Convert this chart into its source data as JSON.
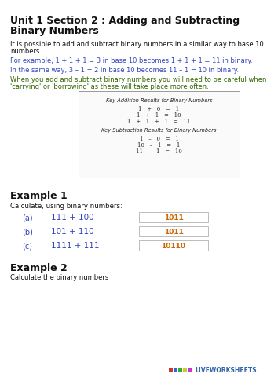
{
  "bg_color": "#ffffff",
  "title_line1": "Unit 1 Section 2 : Adding and Subtracting",
  "title_line2": "Binary Numbers",
  "para1_line1": "It is possible to add and subtract binary numbers in a similar way to base 10",
  "para1_line2": "numbers.",
  "para2": "For example, 1 + 1 + 1 = 3 in base 10 becomes 1 + 1 + 1 = 11 in binary.",
  "para3": "In the same way, 3 – 1 = 2 in base 10 becomes 11 – 1 = 10 in binary.",
  "para4_line1": "When you add and subtract binary numbers you will need to be careful when",
  "para4_line2": "'carrying' or 'borrowing' as these will take place more often.",
  "box_title_add": "Key Addition Results for Binary Numbers",
  "box_add_rows": [
    "1   +   0   =   1",
    "1   +   1   =   10",
    "1   +   1   +   1   =   11"
  ],
  "box_title_sub": "Key Subtraction Results for Binary Numbers",
  "box_sub_rows": [
    "1   –   0   =   1",
    "10   –   1   =   1",
    "11   –   1   =   10"
  ],
  "example1_title": "Example 1",
  "example1_sub": "Calculate, using binary numbers:",
  "example1_items": [
    {
      "label": "(a)",
      "expr": "111 + 100",
      "answer": "1011"
    },
    {
      "label": "(b)",
      "expr": "101 + 110",
      "answer": "1011"
    },
    {
      "label": "(c)",
      "expr": "1111 + 111",
      "answer": "10110"
    }
  ],
  "example2_title": "Example 2",
  "example2_sub": "Calculate the binary numbers",
  "color_black": "#111111",
  "color_blue": "#3344bb",
  "color_green": "#336600",
  "color_orange": "#cc6600",
  "color_gray_border": "#aaaaaa",
  "lw_colors": [
    "#cc3333",
    "#3366cc",
    "#33aa33",
    "#cccc33",
    "#cc33cc"
  ],
  "lw_text_color": "#3366aa"
}
